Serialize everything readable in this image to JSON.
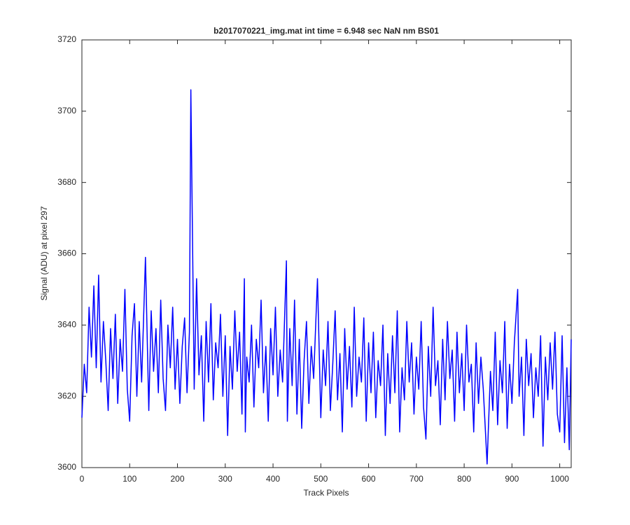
{
  "chart_data": {
    "type": "line",
    "title": "b2017070221_img.mat int time = 6.948 sec  NaN nm BS01",
    "x_label": "Track Pixels",
    "y_label": "Signal (ADU) at pixel 297",
    "xlim": [
      0,
      1024
    ],
    "ylim": [
      3600,
      3720
    ],
    "xticks": [
      0,
      100,
      200,
      300,
      400,
      500,
      600,
      700,
      800,
      900,
      1000
    ],
    "yticks": [
      3600,
      3620,
      3640,
      3660,
      3680,
      3700,
      3720
    ],
    "grid": false,
    "x": [
      0,
      5,
      10,
      15,
      20,
      25,
      30,
      35,
      40,
      45,
      50,
      55,
      60,
      65,
      70,
      75,
      80,
      85,
      90,
      95,
      100,
      105,
      110,
      115,
      120,
      125,
      133,
      140,
      145,
      150,
      155,
      160,
      165,
      170,
      175,
      180,
      185,
      190,
      195,
      200,
      205,
      210,
      215,
      220,
      225,
      228,
      235,
      240,
      245,
      250,
      255,
      260,
      265,
      270,
      275,
      280,
      285,
      290,
      295,
      300,
      305,
      310,
      315,
      320,
      325,
      330,
      335,
      340,
      342,
      345,
      350,
      355,
      360,
      365,
      370,
      375,
      380,
      385,
      390,
      395,
      400,
      405,
      410,
      415,
      420,
      428,
      430,
      435,
      440,
      445,
      450,
      455,
      460,
      465,
      470,
      475,
      480,
      485,
      493,
      500,
      505,
      510,
      515,
      520,
      525,
      530,
      535,
      540,
      545,
      550,
      555,
      560,
      565,
      570,
      575,
      580,
      585,
      590,
      595,
      600,
      605,
      610,
      615,
      620,
      625,
      630,
      635,
      640,
      645,
      650,
      655,
      660,
      665,
      670,
      675,
      680,
      685,
      690,
      695,
      700,
      705,
      710,
      715,
      720,
      725,
      730,
      735,
      740,
      745,
      750,
      755,
      760,
      765,
      770,
      775,
      780,
      785,
      790,
      795,
      800,
      805,
      810,
      815,
      820,
      825,
      830,
      835,
      840,
      848,
      855,
      860,
      865,
      870,
      875,
      880,
      885,
      890,
      895,
      900,
      905,
      912,
      915,
      920,
      925,
      930,
      935,
      940,
      945,
      950,
      955,
      960,
      965,
      970,
      975,
      980,
      985,
      990,
      995,
      1000,
      1005,
      1010,
      1015,
      1020,
      1024
    ],
    "series": [
      {
        "name": "signal",
        "color": "#0000ff",
        "values": [
          3614,
          3629,
          3621,
          3645,
          3631,
          3651,
          3628,
          3654,
          3624,
          3641,
          3630,
          3616,
          3639,
          3625,
          3643,
          3618,
          3636,
          3627,
          3650,
          3622,
          3613,
          3637,
          3646,
          3620,
          3641,
          3624,
          3659,
          3616,
          3644,
          3627,
          3639,
          3621,
          3647,
          3625,
          3616,
          3640,
          3628,
          3645,
          3622,
          3636,
          3618,
          3634,
          3642,
          3621,
          3638,
          3706,
          3622,
          3653,
          3626,
          3637,
          3613,
          3641,
          3624,
          3646,
          3619,
          3635,
          3628,
          3643,
          3620,
          3637,
          3609,
          3634,
          3622,
          3644,
          3627,
          3638,
          3615,
          3653,
          3610,
          3631,
          3624,
          3640,
          3617,
          3636,
          3628,
          3647,
          3621,
          3634,
          3613,
          3639,
          3626,
          3645,
          3620,
          3633,
          3624,
          3658,
          3613,
          3639,
          3623,
          3647,
          3615,
          3636,
          3611,
          3630,
          3641,
          3618,
          3634,
          3625,
          3653,
          3614,
          3633,
          3623,
          3641,
          3616,
          3629,
          3644,
          3619,
          3632,
          3610,
          3639,
          3622,
          3634,
          3617,
          3645,
          3620,
          3631,
          3624,
          3642,
          3613,
          3635,
          3621,
          3638,
          3614,
          3630,
          3623,
          3640,
          3609,
          3632,
          3618,
          3637,
          3621,
          3644,
          3610,
          3628,
          3619,
          3641,
          3624,
          3635,
          3615,
          3631,
          3622,
          3641,
          3617,
          3608,
          3634,
          3620,
          3645,
          3623,
          3630,
          3612,
          3636,
          3619,
          3641,
          3625,
          3633,
          3613,
          3638,
          3621,
          3632,
          3616,
          3640,
          3624,
          3629,
          3610,
          3635,
          3618,
          3631,
          3622,
          3601,
          3627,
          3616,
          3638,
          3612,
          3630,
          3621,
          3641,
          3611,
          3629,
          3618,
          3635,
          3650,
          3620,
          3631,
          3609,
          3636,
          3623,
          3632,
          3614,
          3628,
          3620,
          3637,
          3606,
          3631,
          3619,
          3635,
          3622,
          3638,
          3615,
          3610,
          3637,
          3607,
          3628,
          3605,
          3636
        ]
      }
    ]
  }
}
